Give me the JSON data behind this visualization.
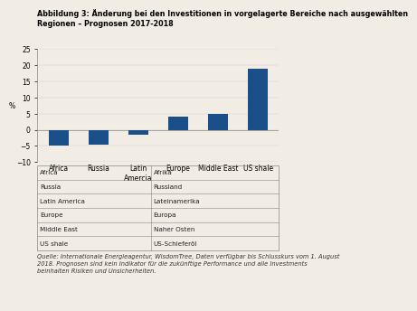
{
  "title_line1": "Abbildung 3: Änderung bei den Investitionen in vorgelagerte Bereiche nach ausgewählten",
  "title_line2": "Regionen – Prognosen 2017-2018",
  "categories": [
    "Africa",
    "Russia",
    "Latin\nAmercia",
    "Europe",
    "Middle East",
    "US shale"
  ],
  "values": [
    -5.0,
    -4.5,
    -1.5,
    4.0,
    5.0,
    19.0
  ],
  "bar_color": "#1a4f8a",
  "ylabel": "%",
  "ylim": [
    -10,
    25
  ],
  "yticks": [
    -10,
    -5,
    0,
    5,
    10,
    15,
    20,
    25
  ],
  "background_color": "#f2ede4",
  "table_rows": [
    [
      "Africa",
      "Afrika"
    ],
    [
      "Russia",
      "Russland"
    ],
    [
      "Latin America",
      "Lateinamerika"
    ],
    [
      "Europe",
      "Europa"
    ],
    [
      "Middle East",
      "Naher Osten"
    ],
    [
      "US shale",
      "US-Schieferöl"
    ]
  ],
  "source_text": "Quelle: Internationale Energieagentur, WisdomTree, Daten verfügbar bis Schlusskurs vom 1. August\n2018. Prognosen sind kein Indikator für die zukünftige Performance und alle Investments\nbeinhalten Risiken und Unsicherheiten.",
  "title_fontsize": 5.8,
  "axis_fontsize": 5.5,
  "tick_fontsize": 5.5,
  "table_fontsize": 5.2,
  "source_fontsize": 4.8
}
